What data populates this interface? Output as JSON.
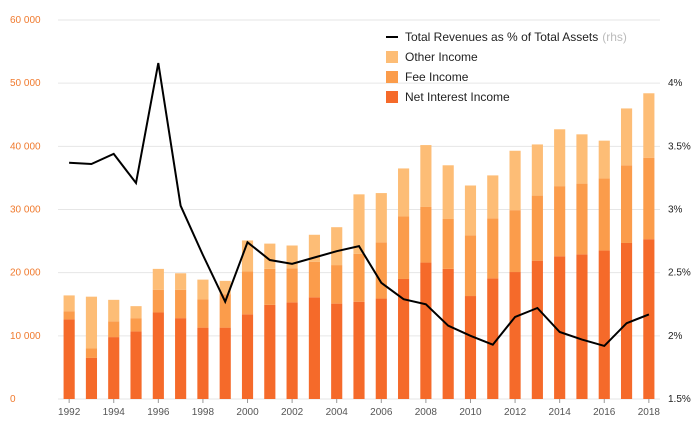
{
  "chart_data": {
    "type": "bar",
    "stacked": true,
    "x_ticks": [
      "1992",
      "1994",
      "1996",
      "1998",
      "2000",
      "2002",
      "2004",
      "2006",
      "2008",
      "2010",
      "2012",
      "2014",
      "2016",
      "2018"
    ],
    "y_left": {
      "ticks": [
        0,
        10000,
        20000,
        30000,
        40000,
        50000,
        60000
      ],
      "tick_labels": [
        "0",
        "10 000",
        "20 000",
        "30 000",
        "40 000",
        "50 000",
        "60 000"
      ],
      "ylim": [
        0,
        60000
      ]
    },
    "y_right": {
      "ticks": [
        1.5,
        2,
        2.5,
        3,
        3.5,
        4
      ],
      "tick_labels": [
        "1.5%",
        "2%",
        "2.5%",
        "3%",
        "3.5%",
        "4%"
      ],
      "ylim": [
        1.5,
        4.5
      ]
    },
    "grid": true,
    "legend_position": "top-right",
    "legend": [
      {
        "label": "Total Revenues as % of Total Assets",
        "suffix": "(rhs)",
        "type": "line",
        "color": "#000000"
      },
      {
        "label": "Other Income",
        "type": "bar",
        "color": "#fdbd76"
      },
      {
        "label": "Fee Income",
        "type": "bar",
        "color": "#fb9c4b"
      },
      {
        "label": "Net Interest Income",
        "type": "bar",
        "color": "#f56a2a"
      }
    ],
    "categories": [
      1992,
      1993,
      1994,
      1995,
      1996,
      1997,
      1998,
      1999,
      2000,
      2001,
      2002,
      2003,
      2004,
      2005,
      2006,
      2007,
      2008,
      2009,
      2010,
      2011,
      2012,
      2013,
      2014,
      2015,
      2016,
      2017,
      2018
    ],
    "series": [
      {
        "name": "Net Interest Income",
        "color": "#f56a2a",
        "values": [
          12600,
          6500,
          9800,
          10700,
          13700,
          12800,
          11300,
          11300,
          13400,
          14900,
          15300,
          16100,
          15100,
          15400,
          15900,
          19000,
          21600,
          20600,
          16300,
          19100,
          20100,
          21900,
          22600,
          22900,
          23500,
          24700,
          25300
        ]
      },
      {
        "name": "Fee Income",
        "color": "#fb9c4b",
        "values": [
          1300,
          1500,
          2500,
          2100,
          3600,
          4500,
          4500,
          5300,
          6800,
          5700,
          5400,
          5600,
          6100,
          7600,
          8900,
          9900,
          8800,
          7900,
          9600,
          9500,
          9800,
          10300,
          11100,
          11200,
          11400,
          12300,
          12900
        ]
      },
      {
        "name": "Other Income",
        "color": "#fdbd76",
        "values": [
          2500,
          8200,
          3400,
          1900,
          3300,
          2600,
          3100,
          2100,
          4900,
          4000,
          3600,
          4300,
          6000,
          9400,
          7800,
          7600,
          9800,
          8500,
          7900,
          6800,
          9400,
          8100,
          9000,
          7800,
          6000,
          9000,
          10200
        ]
      },
      {
        "name": "Total Revenues as % of Total Assets",
        "axis": "right",
        "type": "line",
        "color": "#000000",
        "values": [
          3.37,
          3.36,
          3.44,
          3.21,
          4.16,
          3.03,
          2.64,
          2.27,
          2.74,
          2.6,
          2.57,
          2.62,
          2.67,
          2.71,
          2.42,
          2.29,
          2.25,
          2.08,
          2.0,
          1.93,
          2.15,
          2.22,
          2.03,
          1.97,
          1.92,
          2.1,
          2.17
        ]
      }
    ]
  }
}
